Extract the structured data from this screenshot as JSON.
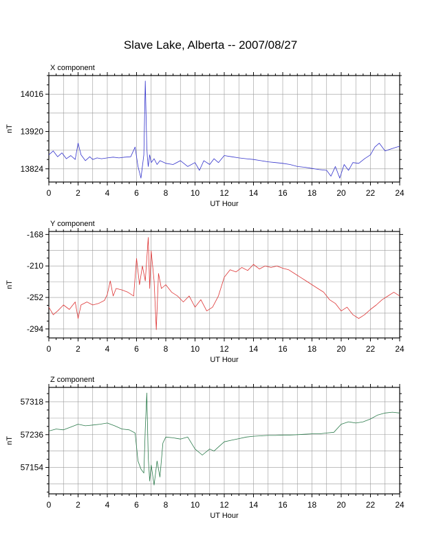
{
  "title": "Slave Lake, Alberta -- 2007/08/27",
  "chart_data": [
    {
      "type": "line",
      "title": "X component",
      "xlabel": "UT Hour",
      "ylabel": "nT",
      "xlim": [
        0,
        24
      ],
      "ylim": [
        13790,
        14064
      ],
      "xticks": [
        0,
        2,
        4,
        6,
        8,
        10,
        12,
        14,
        16,
        18,
        20,
        22,
        24
      ],
      "yticks": [
        13824,
        13920,
        14016
      ],
      "grid": true,
      "color": "#3333cc",
      "series": [
        {
          "x": [
            0,
            0.3,
            0.6,
            0.9,
            1.2,
            1.5,
            1.8,
            2.0,
            2.2,
            2.5,
            2.8,
            3.0,
            3.3,
            3.6,
            4.0,
            4.4,
            4.8,
            5.2,
            5.6,
            5.9,
            6.1,
            6.3,
            6.5,
            6.6,
            6.7,
            6.75,
            6.8,
            6.9,
            7.0,
            7.2,
            7.4,
            7.6,
            8.0,
            8.5,
            9.0,
            9.5,
            10.0,
            10.3,
            10.6,
            11.0,
            11.3,
            11.6,
            12.0,
            12.5,
            13.0,
            13.5,
            14.0,
            14.5,
            15.0,
            15.5,
            16.0,
            16.5,
            17.0,
            17.5,
            18.0,
            18.5,
            19.0,
            19.3,
            19.6,
            19.9,
            20.2,
            20.5,
            20.8,
            21.2,
            21.6,
            22.0,
            22.3,
            22.6,
            23.0,
            23.4,
            23.8,
            24.0
          ],
          "y": [
            13860,
            13870,
            13855,
            13865,
            13850,
            13858,
            13848,
            13890,
            13860,
            13845,
            13855,
            13848,
            13852,
            13850,
            13852,
            13854,
            13852,
            13854,
            13855,
            13880,
            13830,
            13800,
            13860,
            14050,
            13880,
            13850,
            13830,
            13860,
            13840,
            13850,
            13835,
            13845,
            13838,
            13835,
            13845,
            13830,
            13840,
            13820,
            13845,
            13835,
            13850,
            13840,
            13858,
            13855,
            13852,
            13850,
            13848,
            13845,
            13842,
            13840,
            13838,
            13835,
            13830,
            13828,
            13825,
            13822,
            13820,
            13805,
            13830,
            13800,
            13835,
            13820,
            13840,
            13838,
            13850,
            13860,
            13880,
            13890,
            13870,
            13875,
            13880,
            13882
          ]
        }
      ]
    },
    {
      "type": "line",
      "title": "Y component",
      "xlabel": "UT Hour",
      "ylabel": "nT",
      "xlim": [
        0,
        24
      ],
      "ylim": [
        -306,
        -164
      ],
      "xticks": [
        0,
        2,
        4,
        6,
        8,
        10,
        12,
        14,
        16,
        18,
        20,
        22,
        24
      ],
      "yticks": [
        -168,
        -210,
        -252,
        -294
      ],
      "grid": true,
      "color": "#dd3333",
      "series": [
        {
          "x": [
            0,
            0.3,
            0.6,
            1.0,
            1.4,
            1.8,
            2.0,
            2.2,
            2.6,
            3.0,
            3.4,
            3.8,
            4.0,
            4.2,
            4.4,
            4.6,
            5.0,
            5.4,
            5.8,
            6.0,
            6.2,
            6.4,
            6.6,
            6.8,
            6.9,
            7.0,
            7.2,
            7.35,
            7.5,
            7.7,
            8.0,
            8.4,
            8.8,
            9.2,
            9.6,
            10.0,
            10.4,
            10.8,
            11.2,
            11.6,
            12.0,
            12.4,
            12.8,
            13.2,
            13.6,
            14.0,
            14.4,
            14.8,
            15.2,
            15.6,
            16.0,
            16.4,
            16.8,
            17.2,
            17.6,
            18.0,
            18.4,
            18.8,
            19.2,
            19.6,
            20.0,
            20.4,
            20.8,
            21.2,
            21.6,
            22.0,
            22.4,
            22.8,
            23.2,
            23.6,
            24.0
          ],
          "y": [
            -265,
            -275,
            -270,
            -262,
            -268,
            -258,
            -280,
            -262,
            -258,
            -262,
            -260,
            -256,
            -248,
            -230,
            -250,
            -240,
            -242,
            -245,
            -250,
            -200,
            -235,
            -210,
            -230,
            -172,
            -240,
            -190,
            -230,
            -295,
            -220,
            -240,
            -235,
            -245,
            -250,
            -258,
            -250,
            -265,
            -255,
            -270,
            -265,
            -250,
            -225,
            -215,
            -218,
            -212,
            -216,
            -208,
            -214,
            -210,
            -212,
            -210,
            -213,
            -215,
            -220,
            -225,
            -230,
            -235,
            -240,
            -245,
            -255,
            -260,
            -270,
            -265,
            -275,
            -280,
            -275,
            -268,
            -262,
            -255,
            -250,
            -245,
            -250
          ]
        }
      ]
    },
    {
      "type": "line",
      "title": "Z component",
      "xlabel": "UT Hour",
      "ylabel": "nT",
      "xlim": [
        0,
        24
      ],
      "ylim": [
        57088,
        57354
      ],
      "xticks": [
        0,
        2,
        4,
        6,
        8,
        10,
        12,
        14,
        16,
        18,
        20,
        22,
        24
      ],
      "yticks": [
        57154,
        57236,
        57318
      ],
      "grid": true,
      "color": "#2a7a4a",
      "series": [
        {
          "x": [
            0,
            0.5,
            1.0,
            1.5,
            2.0,
            2.5,
            3.0,
            3.5,
            4.0,
            4.5,
            5.0,
            5.5,
            5.9,
            6.1,
            6.3,
            6.5,
            6.6,
            6.7,
            6.8,
            6.9,
            7.0,
            7.2,
            7.4,
            7.6,
            7.8,
            8.0,
            8.5,
            9.0,
            9.5,
            10.0,
            10.5,
            11.0,
            11.3,
            11.6,
            12.0,
            12.5,
            13.0,
            13.5,
            14.0,
            14.5,
            15.0,
            15.5,
            16.0,
            16.5,
            17.0,
            17.5,
            18.0,
            18.5,
            19.0,
            19.5,
            20.0,
            20.5,
            21.0,
            21.5,
            22.0,
            22.5,
            23.0,
            23.5,
            24.0
          ],
          "y": [
            57245,
            57250,
            57248,
            57255,
            57262,
            57258,
            57260,
            57262,
            57265,
            57258,
            57250,
            57248,
            57240,
            57170,
            57150,
            57140,
            57250,
            57340,
            57180,
            57120,
            57160,
            57110,
            57170,
            57130,
            57215,
            57230,
            57228,
            57225,
            57230,
            57200,
            57185,
            57200,
            57195,
            57205,
            57218,
            57222,
            57226,
            57230,
            57232,
            57233,
            57234,
            57234,
            57235,
            57235,
            57236,
            57237,
            57238,
            57238,
            57240,
            57242,
            57262,
            57268,
            57265,
            57268,
            57275,
            57285,
            57290,
            57292,
            57290
          ]
        }
      ]
    }
  ]
}
